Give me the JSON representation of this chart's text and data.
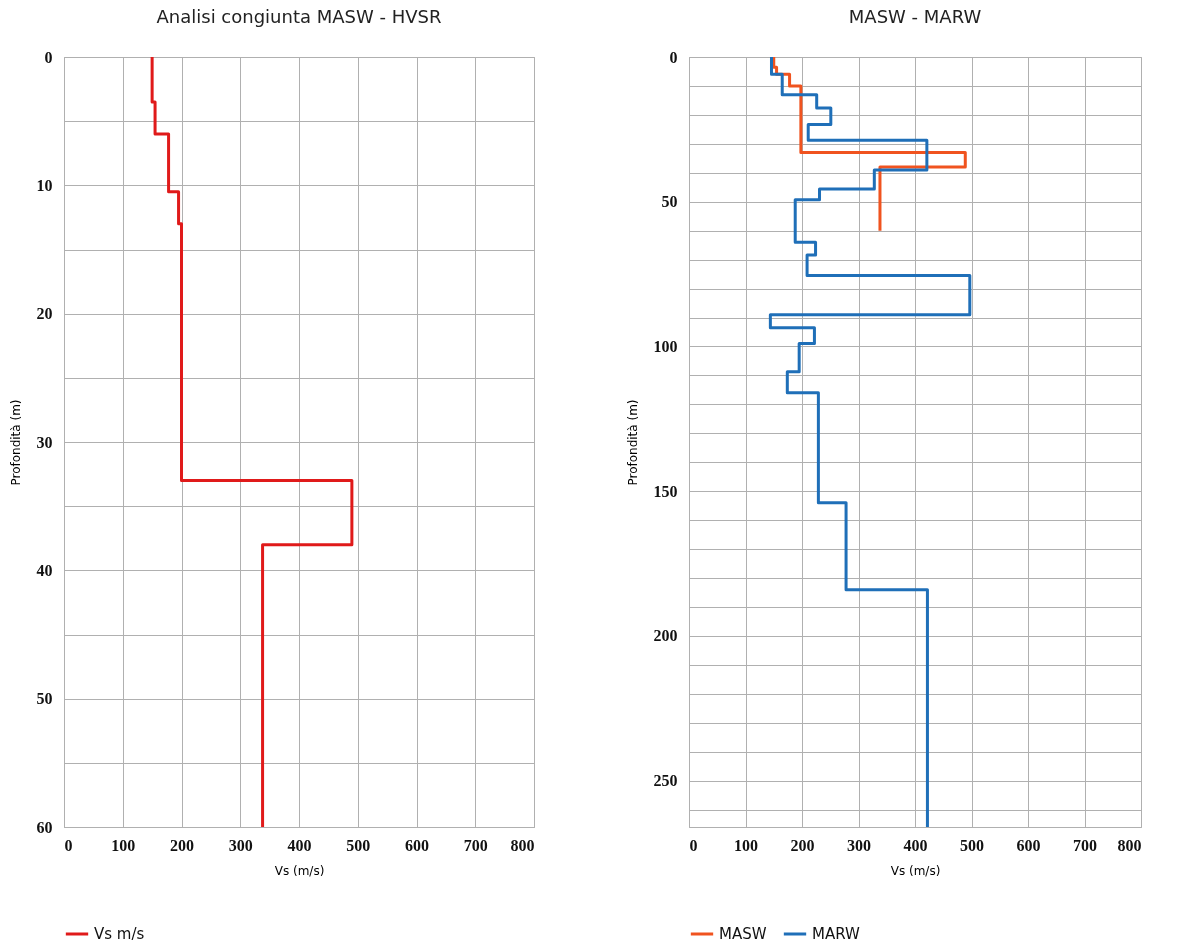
{
  "chart_data": [
    {
      "type": "line",
      "title": "Analisi congiunta MASW - HVSR",
      "xlabel": "Vs (m/s)",
      "ylabel": "Profondità (m)",
      "xlim": [
        0,
        800
      ],
      "xticks": [
        0,
        100,
        200,
        300,
        400,
        500,
        600,
        700,
        800
      ],
      "ylim": [
        60,
        0
      ],
      "yticks": [
        0,
        {
          "value": 5,
          "label": null
        },
        10,
        {
          "value": 15,
          "label": null
        },
        20,
        {
          "value": 25,
          "label": null
        },
        30,
        {
          "value": 35,
          "label": null
        },
        40,
        {
          "value": 45,
          "label": null
        },
        50,
        {
          "value": 55,
          "label": null
        },
        60
      ],
      "grid": true,
      "legend": "bottom",
      "line_style": "solid",
      "series": [
        {
          "name": "Vs m/s",
          "color": "#e01a1a",
          "x": [
            150,
            150,
            155,
            155,
            178,
            178,
            195,
            195,
            200,
            200,
            490,
            490,
            338,
            338
          ],
          "values": [
            0,
            3.5,
            3.5,
            6,
            6,
            10.5,
            10.5,
            13,
            13,
            33,
            33,
            38,
            38,
            60
          ]
        }
      ]
    },
    {
      "type": "line",
      "title": "MASW - MARW",
      "xlabel": "Vs (m/s)",
      "ylabel": "Profondità (m)",
      "xlim": [
        0,
        800
      ],
      "xticks": [
        0,
        100,
        200,
        300,
        400,
        500,
        600,
        700,
        800
      ],
      "ylim": [
        266,
        0
      ],
      "yticks": [
        0,
        {
          "value": 10,
          "label": null
        },
        {
          "value": 20,
          "label": null
        },
        {
          "value": 30,
          "label": null
        },
        {
          "value": 40,
          "label": null
        },
        50,
        {
          "value": 60,
          "label": null
        },
        {
          "value": 70,
          "label": null
        },
        {
          "value": 80,
          "label": null
        },
        {
          "value": 90,
          "label": null
        },
        100,
        {
          "value": 110,
          "label": null
        },
        {
          "value": 120,
          "label": null
        },
        {
          "value": 130,
          "label": null
        },
        {
          "value": 140,
          "label": null
        },
        150,
        {
          "value": 160,
          "label": null
        },
        {
          "value": 170,
          "label": null
        },
        {
          "value": 180,
          "label": null
        },
        {
          "value": 190,
          "label": null
        },
        200,
        {
          "value": 210,
          "label": null
        },
        {
          "value": 220,
          "label": null
        },
        {
          "value": 230,
          "label": null
        },
        {
          "value": 240,
          "label": null
        },
        250,
        {
          "value": 260,
          "label": null
        }
      ],
      "grid": true,
      "legend": "bottom",
      "line_style": "solid",
      "series": [
        {
          "name": "MASW",
          "color": "#f0531f",
          "x": [
            150,
            150,
            155,
            155,
            178,
            178,
            198,
            198,
            489,
            489,
            338,
            338
          ],
          "values": [
            0,
            3.5,
            3.5,
            6,
            6,
            10,
            10,
            33,
            33,
            38,
            38,
            60
          ]
        },
        {
          "name": "MARW",
          "color": "#1f6fb8",
          "x": [
            146,
            146,
            165,
            165,
            226,
            226,
            251,
            251,
            211,
            211,
            421,
            421,
            328,
            328,
            231,
            231,
            188,
            188,
            224,
            224,
            209,
            209,
            497,
            497,
            144,
            144,
            222,
            222,
            195,
            195,
            174,
            174,
            229,
            229,
            278,
            278,
            422,
            422
          ],
          "values": [
            0,
            6,
            6,
            13,
            13,
            17.6,
            17.6,
            23.3,
            23.3,
            28.8,
            28.8,
            39,
            39,
            45.6,
            45.6,
            49.3,
            49.3,
            64,
            64,
            68.4,
            68.4,
            75.5,
            75.5,
            89,
            89,
            93.5,
            93.5,
            99,
            99,
            108.7,
            108.7,
            116,
            116,
            154,
            154,
            184,
            184,
            266
          ]
        }
      ]
    }
  ]
}
